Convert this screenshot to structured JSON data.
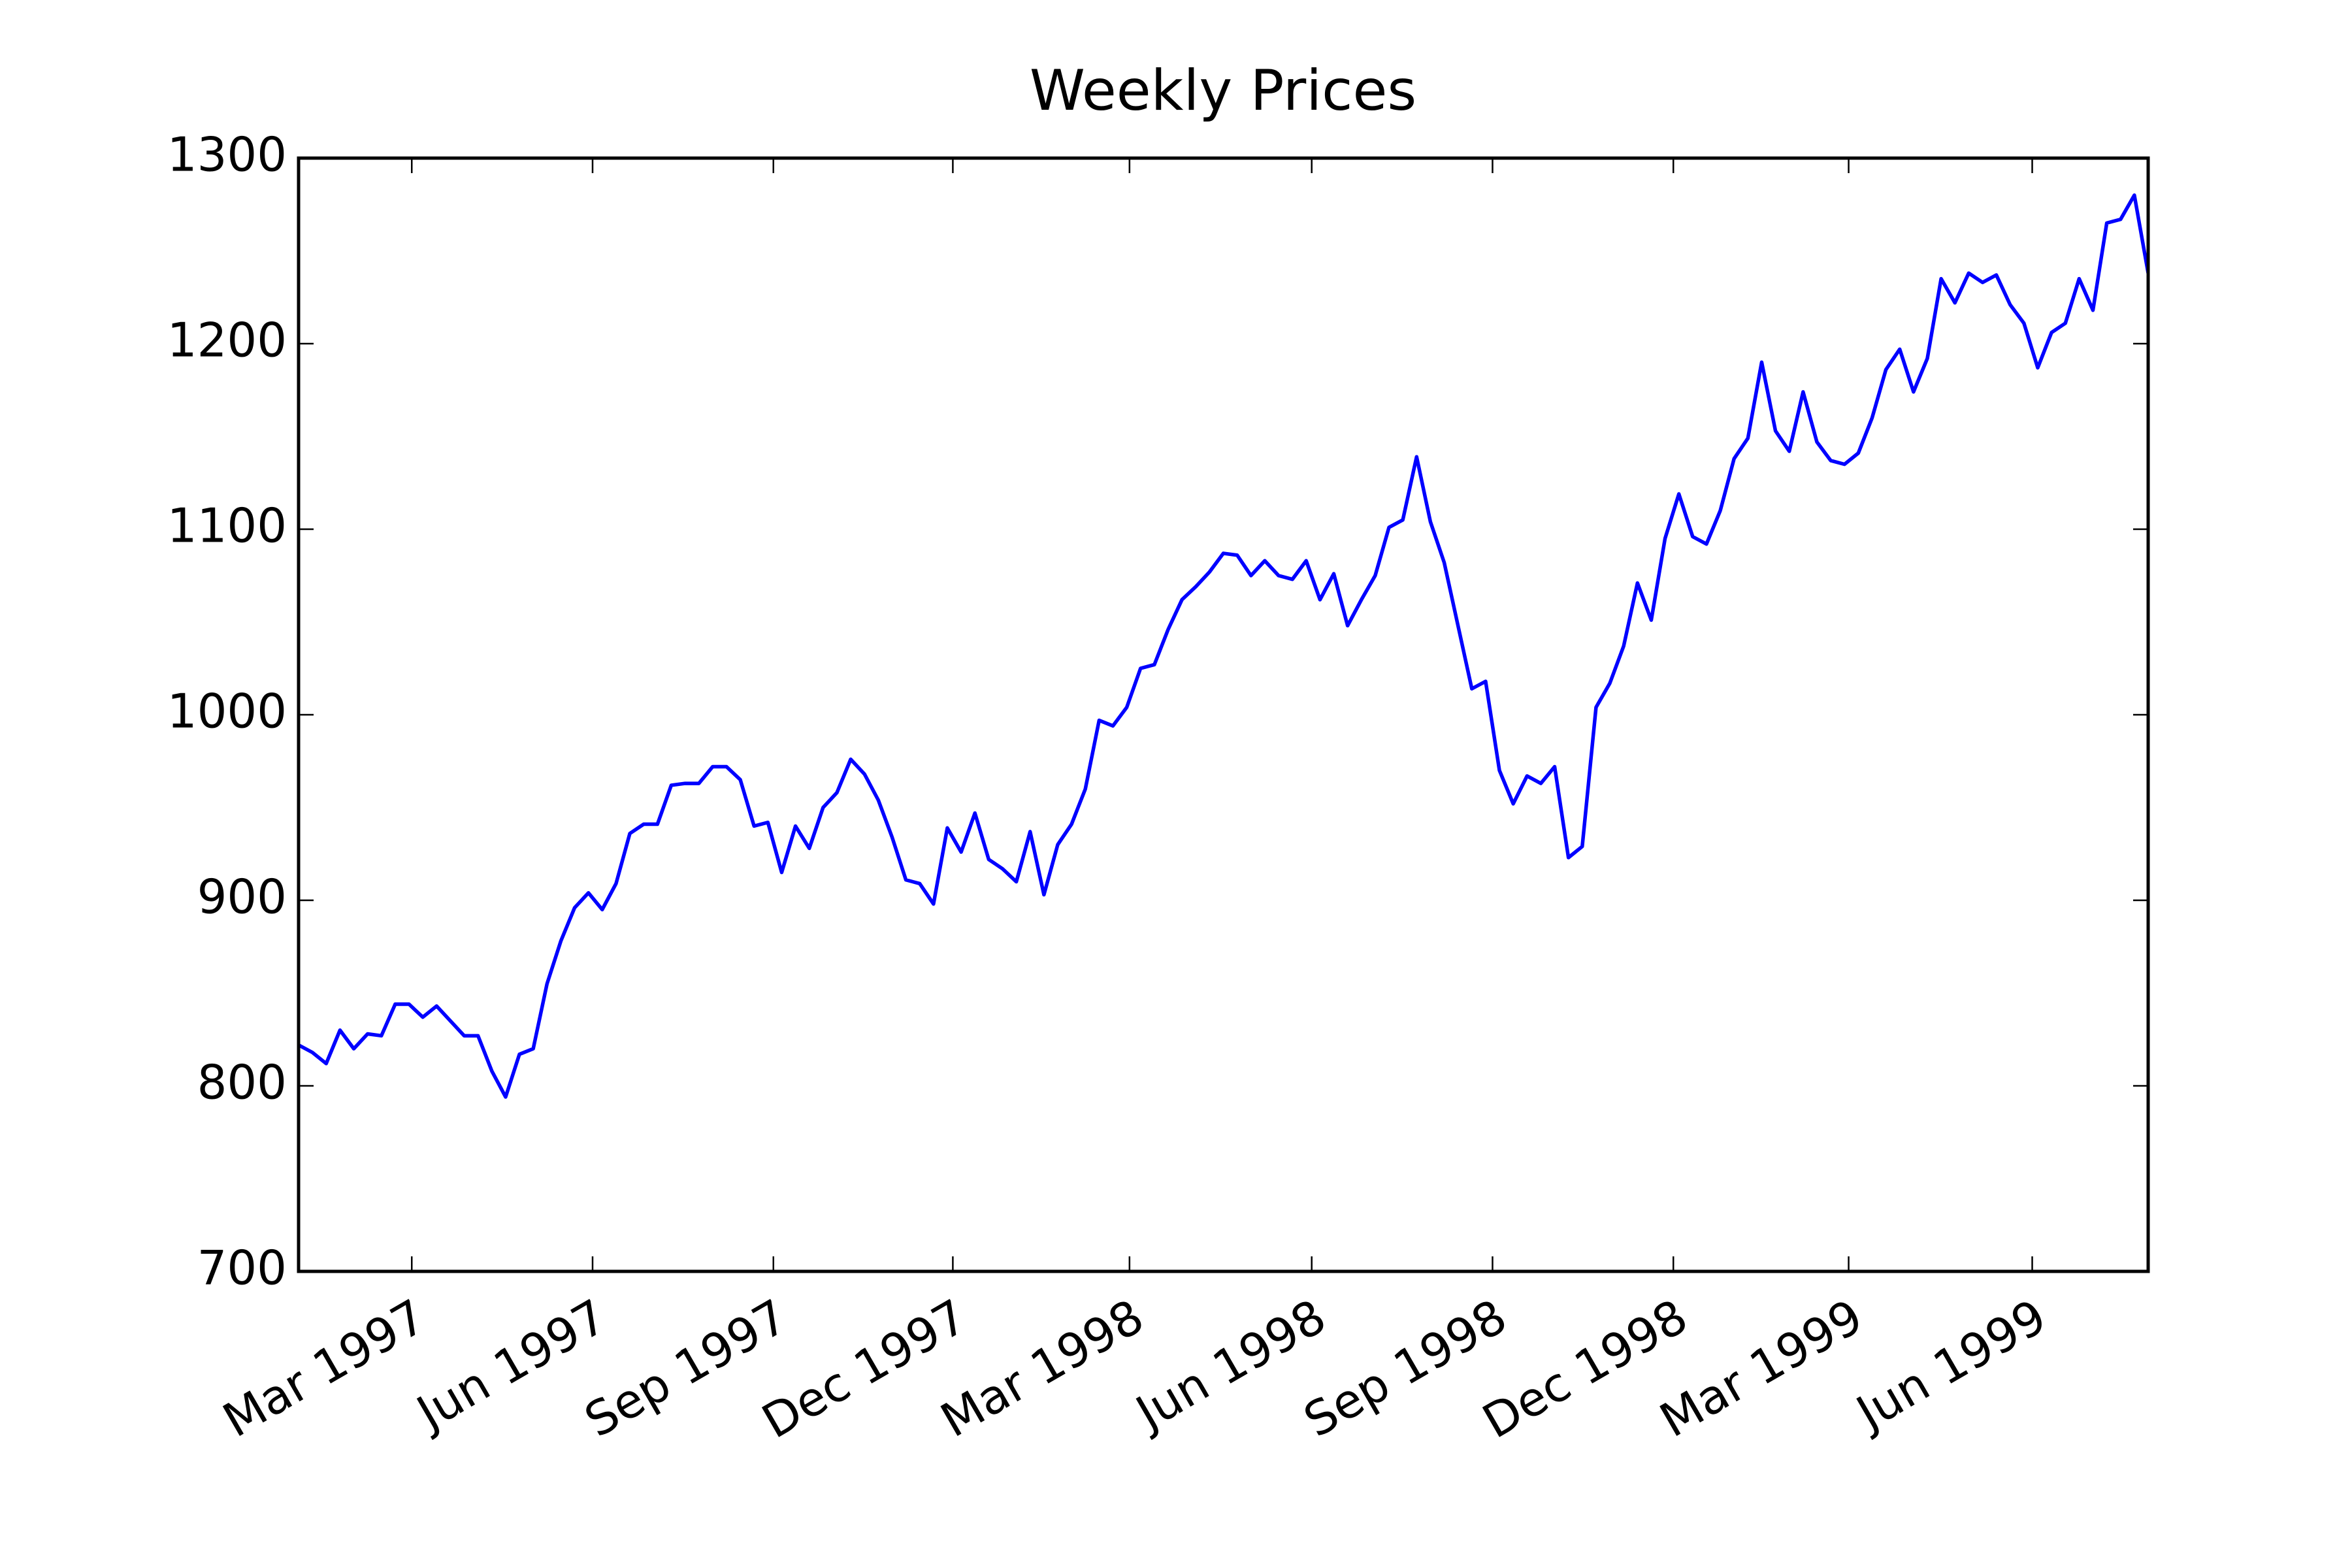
{
  "chart_data": {
    "type": "line",
    "title": "Weekly Prices",
    "x": [
      0,
      1,
      2,
      3,
      4,
      5,
      6,
      7,
      8,
      9,
      10,
      11,
      12,
      13,
      14,
      15,
      16,
      17,
      18,
      19,
      20,
      21,
      22,
      23,
      24,
      25,
      26,
      27,
      28,
      29,
      30,
      31,
      32,
      33,
      34,
      35,
      36,
      37,
      38,
      39,
      40,
      41,
      42,
      43,
      44,
      45,
      46,
      47,
      48,
      49,
      50,
      51,
      52,
      53,
      54,
      55,
      56,
      57,
      58,
      59,
      60,
      61,
      62,
      63,
      64,
      65,
      66,
      67,
      68,
      69,
      70,
      71,
      72,
      73,
      74,
      75,
      76,
      77,
      78,
      79,
      80,
      81,
      82,
      83,
      84,
      85,
      86,
      87,
      88,
      89,
      90,
      91,
      92,
      93,
      94,
      95,
      96,
      97,
      98,
      99,
      100,
      101,
      102,
      103,
      104,
      105,
      106,
      107,
      108,
      109,
      110,
      111,
      112,
      113,
      114,
      115,
      116,
      117,
      118,
      119,
      120,
      121,
      122,
      123,
      124,
      125,
      126,
      127,
      128,
      129,
      130,
      131,
      132,
      133,
      134
    ],
    "series": [
      {
        "color": "#0000ff",
        "values": [
          822,
          818,
          812,
          830,
          820,
          828,
          827,
          844,
          844,
          837,
          843,
          835,
          827,
          827,
          808,
          794,
          817,
          820,
          855,
          878,
          896,
          904,
          895,
          909,
          936,
          941,
          941,
          962,
          963,
          963,
          972,
          972,
          965,
          940,
          942,
          915,
          940,
          928,
          950,
          958,
          976,
          968,
          954,
          934,
          911,
          909,
          898,
          939,
          926,
          947,
          922,
          917,
          910,
          937,
          903,
          930,
          941,
          960,
          997,
          994,
          1004,
          1025,
          1027,
          1046,
          1062,
          1069,
          1077,
          1087,
          1086,
          1075,
          1083,
          1075,
          1073,
          1083,
          1062,
          1076,
          1048,
          1062,
          1075,
          1101,
          1105,
          1139,
          1104,
          1082,
          1048,
          1014,
          1018,
          970,
          952,
          967,
          963,
          972,
          923,
          929,
          1004,
          1017,
          1037,
          1071,
          1051,
          1095,
          1119,
          1096,
          1092,
          1110,
          1138,
          1149,
          1190,
          1153,
          1142,
          1174,
          1147,
          1137,
          1135,
          1141,
          1160,
          1186,
          1197,
          1174,
          1192,
          1235,
          1222,
          1238,
          1233,
          1237,
          1221,
          1211,
          1187,
          1206,
          1211,
          1235,
          1218,
          1265,
          1267,
          1280,
          1238
        ]
      }
    ],
    "xlim": [
      0,
      134
    ],
    "xticks": [
      {
        "value": 8.2,
        "label": "Mar 1997"
      },
      {
        "value": 21.3,
        "label": "Jun 1997"
      },
      {
        "value": 34.4,
        "label": "Sep 1997"
      },
      {
        "value": 47.4,
        "label": "Dec 1997"
      },
      {
        "value": 60.2,
        "label": "Mar 1998"
      },
      {
        "value": 73.4,
        "label": "Jun 1998"
      },
      {
        "value": 86.5,
        "label": "Sep 1998"
      },
      {
        "value": 99.6,
        "label": "Dec 1998"
      },
      {
        "value": 112.3,
        "label": "Mar 1999"
      },
      {
        "value": 125.6,
        "label": "Jun 1999"
      }
    ],
    "ylim": [
      700,
      1300
    ],
    "yticks": [
      700,
      800,
      900,
      1000,
      1100,
      1200,
      1300
    ],
    "grid": false
  }
}
